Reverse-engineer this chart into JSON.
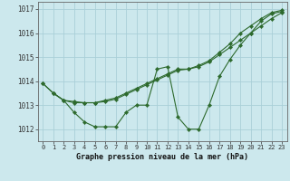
{
  "xlabel": "Graphe pression niveau de la mer (hPa)",
  "x_ticks": [
    0,
    1,
    2,
    3,
    4,
    5,
    6,
    7,
    8,
    9,
    10,
    11,
    12,
    13,
    14,
    15,
    16,
    17,
    18,
    19,
    20,
    21,
    22,
    23
  ],
  "ylim": [
    1011.5,
    1017.3
  ],
  "yticks": [
    1012,
    1013,
    1014,
    1015,
    1016,
    1017
  ],
  "bg_color": "#cce8ed",
  "grid_color": "#aad0d8",
  "line_color": "#2d6a2d",
  "series_zigzag": {
    "x": [
      1,
      2,
      3,
      4,
      5,
      6,
      7,
      8,
      9,
      10,
      11,
      12,
      13,
      14,
      15,
      16,
      17,
      18,
      19,
      20,
      21,
      22,
      23
    ],
    "y": [
      1013.5,
      1013.2,
      1012.7,
      1012.3,
      1012.1,
      1012.1,
      1012.1,
      1012.7,
      1013.0,
      1013.0,
      1014.5,
      1014.6,
      1012.5,
      1012.0,
      1012.0,
      1013.0,
      1014.2,
      1014.9,
      1015.5,
      1016.0,
      1016.5,
      1016.8,
      1016.9
    ]
  },
  "series_smooth1": {
    "x": [
      0,
      1,
      2,
      3,
      4,
      5,
      6,
      7,
      8,
      9,
      10,
      11,
      12,
      13,
      14,
      15,
      16,
      17,
      18,
      19,
      20,
      21,
      22,
      23
    ],
    "y": [
      1013.9,
      1013.5,
      1013.2,
      1013.1,
      1013.1,
      1013.1,
      1013.2,
      1013.3,
      1013.5,
      1013.7,
      1013.9,
      1014.1,
      1014.3,
      1014.5,
      1014.5,
      1014.6,
      1014.8,
      1015.1,
      1015.4,
      1015.7,
      1016.0,
      1016.3,
      1016.6,
      1016.85
    ]
  },
  "series_smooth2": {
    "x": [
      0,
      1,
      2,
      3,
      4,
      5,
      6,
      7,
      8,
      9,
      10,
      11,
      12,
      13,
      14,
      15,
      16,
      17,
      18,
      19,
      20,
      21,
      22,
      23
    ],
    "y": [
      1013.9,
      1013.5,
      1013.2,
      1013.15,
      1013.1,
      1013.1,
      1013.15,
      1013.25,
      1013.45,
      1013.65,
      1013.85,
      1014.05,
      1014.25,
      1014.45,
      1014.5,
      1014.65,
      1014.85,
      1015.2,
      1015.55,
      1016.0,
      1016.3,
      1016.6,
      1016.85,
      1016.95
    ]
  }
}
